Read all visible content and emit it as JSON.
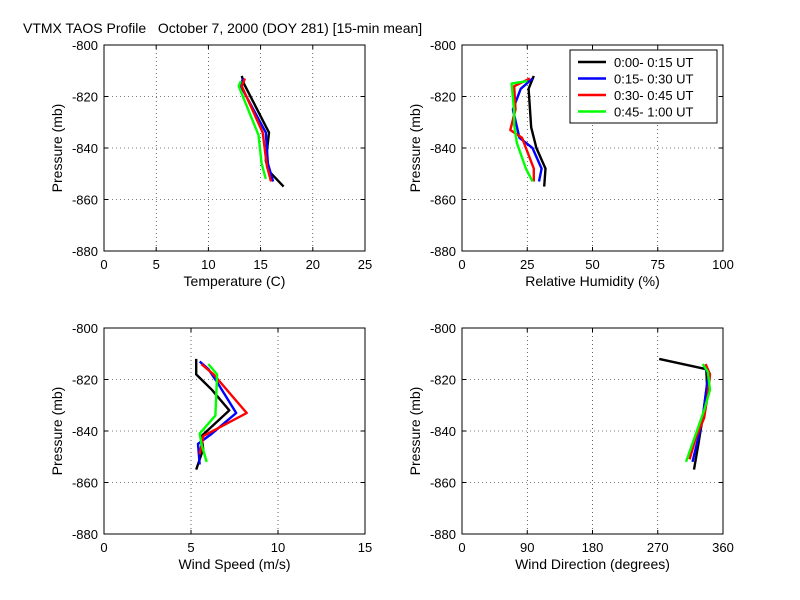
{
  "figure_title": "VTMX TAOS Profile   October 7, 2000 (DOY 281) [15-min mean]",
  "colors": {
    "series": [
      "#000000",
      "#0000ff",
      "#ff0000",
      "#00ff00"
    ]
  },
  "chart_data": [
    {
      "type": "line",
      "xlabel": "Temperature (C)",
      "ylabel": "Pressure (mb)",
      "xlim": [
        0,
        25
      ],
      "ylim": [
        -880,
        -800
      ],
      "xticks": [
        0,
        5,
        10,
        15,
        20,
        25
      ],
      "yticks": [
        -880,
        -860,
        -840,
        -820,
        -800
      ],
      "grid": true,
      "series": [
        {
          "name": "0:00- 0:15 UT",
          "x": [
            13.2,
            13.4,
            15.8,
            15.5,
            15.8,
            17.2
          ],
          "y": [
            -812,
            -815,
            -834,
            -845,
            -849,
            -855
          ]
        },
        {
          "name": "0:15- 0:30 UT",
          "x": [
            13.3,
            13.1,
            15.5,
            15.7,
            16.2
          ],
          "y": [
            -813,
            -816,
            -834,
            -846,
            -853
          ]
        },
        {
          "name": "0:30- 0:45 UT",
          "x": [
            13.5,
            13.2,
            15.2,
            15.6,
            16.0
          ],
          "y": [
            -813,
            -816,
            -834,
            -847,
            -853
          ]
        },
        {
          "name": "0:45- 1:00 UT",
          "x": [
            13.1,
            12.9,
            14.8,
            15.1,
            15.5
          ],
          "y": [
            -814,
            -816,
            -835,
            -846,
            -852
          ]
        }
      ]
    },
    {
      "type": "line",
      "xlabel": "Relative Humidity (%)",
      "ylabel": "Pressure (mb)",
      "xlim": [
        0,
        100
      ],
      "ylim": [
        -880,
        -800
      ],
      "xticks": [
        0,
        25,
        50,
        75,
        100
      ],
      "yticks": [
        -880,
        -860,
        -840,
        -820,
        -800
      ],
      "grid": true,
      "legend_position": "top-right",
      "series": [
        {
          "name": "0:00- 0:15 UT",
          "x": [
            27.5,
            25.5,
            26.5,
            28.5,
            32.0,
            31.5
          ],
          "y": [
            -812,
            -817,
            -832,
            -840,
            -848,
            -855
          ]
        },
        {
          "name": "0:15- 0:30 UT",
          "x": [
            27.0,
            22.5,
            19.5,
            22.0,
            27.0,
            30.5,
            29.5
          ],
          "y": [
            -813,
            -817,
            -825,
            -836,
            -840,
            -848,
            -853
          ]
        },
        {
          "name": "0:30- 0:45 UT",
          "x": [
            26.0,
            20.0,
            20.5,
            18.5,
            23.0,
            27.5,
            27.5
          ],
          "y": [
            -813,
            -816,
            -825,
            -833,
            -836,
            -848,
            -853
          ]
        },
        {
          "name": "0:45- 1:00 UT",
          "x": [
            25.0,
            19.0,
            20.0,
            20.0,
            21.0,
            24.5,
            27.0
          ],
          "y": [
            -814,
            -815,
            -826,
            -831,
            -838,
            -848,
            -853
          ]
        }
      ]
    },
    {
      "type": "line",
      "xlabel": "Wind Speed (m/s)",
      "ylabel": "Pressure (mb)",
      "xlim": [
        0,
        15
      ],
      "ylim": [
        -880,
        -800
      ],
      "xticks": [
        0,
        5,
        10,
        15
      ],
      "yticks": [
        -880,
        -860,
        -840,
        -820,
        -800
      ],
      "grid": true,
      "series": [
        {
          "name": "0:00- 0:15 UT",
          "x": [
            5.3,
            5.3,
            6.2,
            7.2,
            5.6,
            5.7,
            5.3
          ],
          "y": [
            -812,
            -818,
            -824,
            -832,
            -842,
            -847,
            -855
          ]
        },
        {
          "name": "0:15- 0:30 UT",
          "x": [
            5.5,
            6.0,
            6.5,
            7.6,
            6.2,
            5.4,
            5.5
          ],
          "y": [
            -813,
            -816,
            -821,
            -833,
            -841,
            -845,
            -853
          ]
        },
        {
          "name": "0:30- 0:45 UT",
          "x": [
            5.6,
            6.3,
            8.2,
            6.8,
            5.7,
            5.5
          ],
          "y": [
            -814,
            -818,
            -833,
            -838,
            -842,
            -849
          ]
        },
        {
          "name": "0:45- 1:00 UT",
          "x": [
            6.0,
            6.5,
            6.4,
            5.5,
            5.6,
            5.9
          ],
          "y": [
            -814,
            -818,
            -834,
            -841,
            -845,
            -852
          ]
        }
      ]
    },
    {
      "type": "line",
      "xlabel": "Wind Direction (degrees)",
      "ylabel": "Pressure (mb)",
      "xlim": [
        0,
        360
      ],
      "ylim": [
        -880,
        -800
      ],
      "xticks": [
        0,
        90,
        180,
        270,
        360
      ],
      "yticks": [
        -880,
        -860,
        -840,
        -820,
        -800
      ],
      "grid": true,
      "series": [
        {
          "name": "0:00- 0:15 UT",
          "x": [
            272,
            337,
            338,
            333,
            326,
            320
          ],
          "y": [
            -812,
            -816,
            -822,
            -833,
            -845,
            -855
          ]
        },
        {
          "name": "0:15- 0:30 UT",
          "x": [
            334,
            340,
            336,
            332,
            328,
            318
          ],
          "y": [
            -815,
            -818,
            -826,
            -835,
            -840,
            -852
          ]
        },
        {
          "name": "0:30- 0:45 UT",
          "x": [
            336,
            342,
            339,
            334,
            322,
            314
          ],
          "y": [
            -814,
            -818,
            -826,
            -835,
            -843,
            -851
          ]
        },
        {
          "name": "0:45- 1:00 UT",
          "x": [
            332,
            339,
            342,
            334,
            324,
            309
          ],
          "y": [
            -814,
            -817,
            -824,
            -832,
            -840,
            -852
          ]
        }
      ]
    }
  ]
}
